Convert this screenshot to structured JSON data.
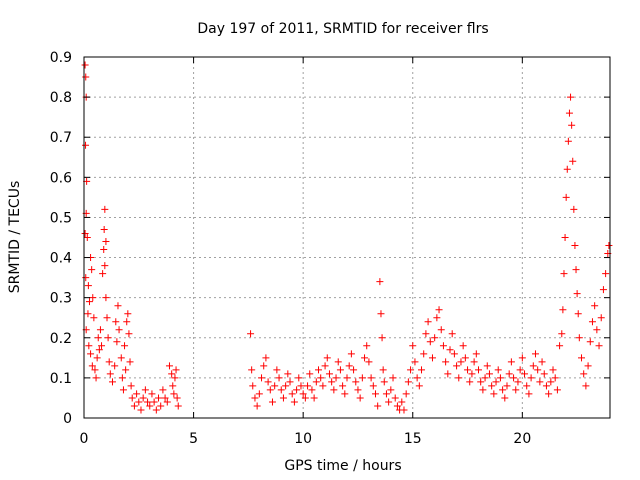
{
  "chart_data": {
    "type": "scatter",
    "title": "Day 197 of 2011, SRMTID for receiver flrs",
    "xlabel": "GPS time / hours",
    "ylabel": "SRMTID / TECUs",
    "xlim": [
      0,
      24
    ],
    "ylim": [
      0,
      0.9
    ],
    "xticks": [
      0,
      5,
      10,
      15,
      20
    ],
    "xtick_labels": [
      "0",
      "5",
      "10",
      "15",
      "20"
    ],
    "yticks": [
      0,
      0.1,
      0.2,
      0.3,
      0.4,
      0.5,
      0.6,
      0.7,
      0.8,
      0.9
    ],
    "ytick_labels": [
      "0",
      "0.1",
      "0.2",
      "0.3",
      "0.4",
      "0.5",
      "0.6",
      "0.7",
      "0.8",
      "0.9"
    ],
    "grid": true,
    "marker": "+",
    "color": "#ff0000",
    "series": [
      {
        "name": "flrs",
        "points": [
          [
            0.05,
            0.88
          ],
          [
            0.08,
            0.85
          ],
          [
            0.1,
            0.8
          ],
          [
            0.07,
            0.68
          ],
          [
            0.12,
            0.59
          ],
          [
            0.1,
            0.51
          ],
          [
            0.05,
            0.46
          ],
          [
            0.15,
            0.45
          ],
          [
            0.08,
            0.35
          ],
          [
            0.2,
            0.33
          ],
          [
            0.25,
            0.29
          ],
          [
            0.18,
            0.26
          ],
          [
            0.3,
            0.4
          ],
          [
            0.35,
            0.37
          ],
          [
            0.4,
            0.3
          ],
          [
            0.45,
            0.25
          ],
          [
            0.1,
            0.22
          ],
          [
            0.22,
            0.18
          ],
          [
            0.3,
            0.16
          ],
          [
            0.38,
            0.13
          ],
          [
            0.5,
            0.12
          ],
          [
            0.55,
            0.1
          ],
          [
            0.6,
            0.15
          ],
          [
            0.65,
            0.2
          ],
          [
            0.7,
            0.17
          ],
          [
            0.75,
            0.22
          ],
          [
            0.8,
            0.18
          ],
          [
            0.85,
            0.36
          ],
          [
            0.9,
            0.42
          ],
          [
            0.92,
            0.47
          ],
          [
            0.95,
            0.52
          ],
          [
            1.0,
            0.44
          ],
          [
            0.95,
            0.38
          ],
          [
            1.0,
            0.3
          ],
          [
            1.05,
            0.25
          ],
          [
            1.1,
            0.2
          ],
          [
            1.15,
            0.14
          ],
          [
            1.2,
            0.11
          ],
          [
            1.3,
            0.09
          ],
          [
            1.4,
            0.13
          ],
          [
            1.5,
            0.19
          ],
          [
            1.45,
            0.24
          ],
          [
            1.55,
            0.28
          ],
          [
            1.6,
            0.22
          ],
          [
            1.7,
            0.15
          ],
          [
            1.75,
            0.1
          ],
          [
            1.8,
            0.07
          ],
          [
            1.9,
            0.12
          ],
          [
            1.85,
            0.18
          ],
          [
            1.95,
            0.24
          ],
          [
            2.0,
            0.26
          ],
          [
            2.05,
            0.21
          ],
          [
            2.1,
            0.14
          ],
          [
            2.15,
            0.08
          ],
          [
            2.2,
            0.05
          ],
          [
            2.3,
            0.03
          ],
          [
            2.4,
            0.06
          ],
          [
            2.5,
            0.04
          ],
          [
            2.6,
            0.02
          ],
          [
            2.7,
            0.05
          ],
          [
            2.8,
            0.07
          ],
          [
            2.9,
            0.04
          ],
          [
            3.0,
            0.03
          ],
          [
            3.1,
            0.06
          ],
          [
            3.2,
            0.04
          ],
          [
            3.3,
            0.02
          ],
          [
            3.4,
            0.05
          ],
          [
            3.5,
            0.03
          ],
          [
            3.6,
            0.07
          ],
          [
            3.7,
            0.05
          ],
          [
            3.8,
            0.04
          ],
          [
            3.9,
            0.13
          ],
          [
            4.0,
            0.11
          ],
          [
            4.05,
            0.08
          ],
          [
            4.1,
            0.06
          ],
          [
            4.15,
            0.1
          ],
          [
            4.2,
            0.12
          ],
          [
            4.25,
            0.05
          ],
          [
            4.3,
            0.03
          ],
          [
            7.6,
            0.21
          ],
          [
            7.65,
            0.12
          ],
          [
            7.7,
            0.08
          ],
          [
            7.8,
            0.05
          ],
          [
            7.9,
            0.03
          ],
          [
            8.0,
            0.06
          ],
          [
            8.1,
            0.1
          ],
          [
            8.2,
            0.13
          ],
          [
            8.3,
            0.15
          ],
          [
            8.4,
            0.09
          ],
          [
            8.5,
            0.07
          ],
          [
            8.6,
            0.04
          ],
          [
            8.7,
            0.08
          ],
          [
            8.8,
            0.12
          ],
          [
            8.9,
            0.1
          ],
          [
            9.0,
            0.07
          ],
          [
            9.1,
            0.05
          ],
          [
            9.2,
            0.08
          ],
          [
            9.3,
            0.11
          ],
          [
            9.4,
            0.09
          ],
          [
            9.5,
            0.06
          ],
          [
            9.6,
            0.04
          ],
          [
            9.7,
            0.07
          ],
          [
            9.8,
            0.1
          ],
          [
            9.9,
            0.08
          ],
          [
            10.0,
            0.06
          ],
          [
            10.1,
            0.05
          ],
          [
            10.2,
            0.08
          ],
          [
            10.3,
            0.11
          ],
          [
            10.4,
            0.07
          ],
          [
            10.5,
            0.05
          ],
          [
            10.6,
            0.09
          ],
          [
            10.7,
            0.12
          ],
          [
            10.8,
            0.1
          ],
          [
            10.9,
            0.08
          ],
          [
            11.0,
            0.13
          ],
          [
            11.1,
            0.15
          ],
          [
            11.2,
            0.11
          ],
          [
            11.3,
            0.09
          ],
          [
            11.4,
            0.07
          ],
          [
            11.5,
            0.1
          ],
          [
            11.6,
            0.14
          ],
          [
            11.7,
            0.12
          ],
          [
            11.8,
            0.08
          ],
          [
            11.9,
            0.06
          ],
          [
            12.0,
            0.1
          ],
          [
            12.1,
            0.13
          ],
          [
            12.2,
            0.16
          ],
          [
            12.3,
            0.12
          ],
          [
            12.4,
            0.09
          ],
          [
            12.5,
            0.07
          ],
          [
            12.6,
            0.05
          ],
          [
            12.7,
            0.1
          ],
          [
            12.8,
            0.15
          ],
          [
            12.9,
            0.18
          ],
          [
            13.0,
            0.14
          ],
          [
            13.1,
            0.1
          ],
          [
            13.2,
            0.08
          ],
          [
            13.3,
            0.06
          ],
          [
            13.4,
            0.03
          ],
          [
            13.5,
            0.34
          ],
          [
            13.55,
            0.26
          ],
          [
            13.6,
            0.2
          ],
          [
            13.65,
            0.12
          ],
          [
            13.7,
            0.09
          ],
          [
            13.8,
            0.06
          ],
          [
            13.9,
            0.04
          ],
          [
            14.0,
            0.07
          ],
          [
            14.1,
            0.1
          ],
          [
            14.2,
            0.05
          ],
          [
            14.3,
            0.03
          ],
          [
            14.4,
            0.02
          ],
          [
            14.5,
            0.04
          ],
          [
            14.6,
            0.02
          ],
          [
            14.7,
            0.06
          ],
          [
            14.8,
            0.09
          ],
          [
            14.9,
            0.12
          ],
          [
            15.0,
            0.18
          ],
          [
            15.1,
            0.14
          ],
          [
            15.2,
            0.1
          ],
          [
            15.3,
            0.08
          ],
          [
            15.4,
            0.12
          ],
          [
            15.5,
            0.16
          ],
          [
            15.6,
            0.21
          ],
          [
            15.7,
            0.24
          ],
          [
            15.8,
            0.19
          ],
          [
            15.9,
            0.15
          ],
          [
            16.0,
            0.2
          ],
          [
            16.1,
            0.25
          ],
          [
            16.2,
            0.27
          ],
          [
            16.3,
            0.22
          ],
          [
            16.4,
            0.18
          ],
          [
            16.5,
            0.14
          ],
          [
            16.6,
            0.11
          ],
          [
            16.7,
            0.17
          ],
          [
            16.8,
            0.21
          ],
          [
            16.9,
            0.16
          ],
          [
            17.0,
            0.13
          ],
          [
            17.1,
            0.1
          ],
          [
            17.2,
            0.14
          ],
          [
            17.3,
            0.18
          ],
          [
            17.4,
            0.15
          ],
          [
            17.5,
            0.12
          ],
          [
            17.6,
            0.09
          ],
          [
            17.7,
            0.11
          ],
          [
            17.8,
            0.14
          ],
          [
            17.9,
            0.16
          ],
          [
            18.0,
            0.12
          ],
          [
            18.1,
            0.09
          ],
          [
            18.2,
            0.07
          ],
          [
            18.3,
            0.1
          ],
          [
            18.4,
            0.13
          ],
          [
            18.5,
            0.11
          ],
          [
            18.6,
            0.08
          ],
          [
            18.7,
            0.06
          ],
          [
            18.8,
            0.09
          ],
          [
            18.9,
            0.12
          ],
          [
            19.0,
            0.1
          ],
          [
            19.1,
            0.07
          ],
          [
            19.2,
            0.05
          ],
          [
            19.3,
            0.08
          ],
          [
            19.4,
            0.11
          ],
          [
            19.5,
            0.14
          ],
          [
            19.6,
            0.1
          ],
          [
            19.7,
            0.07
          ],
          [
            19.8,
            0.09
          ],
          [
            19.9,
            0.12
          ],
          [
            20.0,
            0.15
          ],
          [
            20.1,
            0.11
          ],
          [
            20.2,
            0.08
          ],
          [
            20.3,
            0.06
          ],
          [
            20.4,
            0.1
          ],
          [
            20.5,
            0.13
          ],
          [
            20.6,
            0.16
          ],
          [
            20.7,
            0.12
          ],
          [
            20.8,
            0.09
          ],
          [
            20.9,
            0.14
          ],
          [
            21.0,
            0.11
          ],
          [
            21.1,
            0.08
          ],
          [
            21.2,
            0.06
          ],
          [
            21.3,
            0.09
          ],
          [
            21.4,
            0.12
          ],
          [
            21.5,
            0.1
          ],
          [
            21.6,
            0.07
          ],
          [
            21.7,
            0.18
          ],
          [
            21.8,
            0.21
          ],
          [
            21.85,
            0.27
          ],
          [
            21.9,
            0.36
          ],
          [
            21.95,
            0.45
          ],
          [
            22.0,
            0.55
          ],
          [
            22.05,
            0.62
          ],
          [
            22.1,
            0.69
          ],
          [
            22.15,
            0.76
          ],
          [
            22.2,
            0.8
          ],
          [
            22.25,
            0.73
          ],
          [
            22.3,
            0.64
          ],
          [
            22.35,
            0.52
          ],
          [
            22.4,
            0.43
          ],
          [
            22.45,
            0.37
          ],
          [
            22.5,
            0.31
          ],
          [
            22.55,
            0.26
          ],
          [
            22.6,
            0.2
          ],
          [
            22.7,
            0.15
          ],
          [
            22.8,
            0.11
          ],
          [
            22.9,
            0.08
          ],
          [
            23.0,
            0.13
          ],
          [
            23.1,
            0.19
          ],
          [
            23.2,
            0.24
          ],
          [
            23.3,
            0.28
          ],
          [
            23.4,
            0.22
          ],
          [
            23.5,
            0.18
          ],
          [
            23.6,
            0.25
          ],
          [
            23.7,
            0.32
          ],
          [
            23.8,
            0.36
          ],
          [
            23.9,
            0.41
          ],
          [
            23.95,
            0.43
          ]
        ]
      }
    ]
  }
}
